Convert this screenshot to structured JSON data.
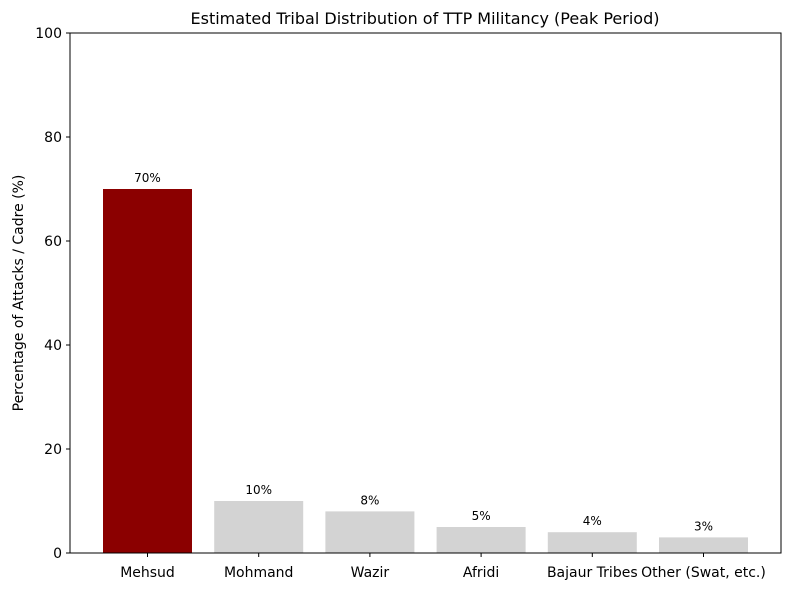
{
  "chart_data": {
    "type": "bar",
    "title": "Estimated Tribal Distribution of TTP Militancy (Peak Period)",
    "xlabel": "",
    "ylabel": "Percentage of Attacks / Cadre (%)",
    "categories": [
      "Mehsud",
      "Mohmand",
      "Wazir",
      "Afridi",
      "Bajaur Tribes",
      "Other (Swat, etc.)"
    ],
    "values": [
      70,
      10,
      8,
      5,
      4,
      3
    ],
    "data_labels": [
      "70%",
      "10%",
      "8%",
      "5%",
      "4%",
      "3%"
    ],
    "colors": [
      "#8b0000",
      "#d3d3d3",
      "#d3d3d3",
      "#d3d3d3",
      "#d3d3d3",
      "#d3d3d3"
    ],
    "ylim": [
      0,
      100
    ],
    "yticks": [
      0,
      20,
      40,
      60,
      80,
      100
    ],
    "grid": false,
    "legend": "none"
  }
}
